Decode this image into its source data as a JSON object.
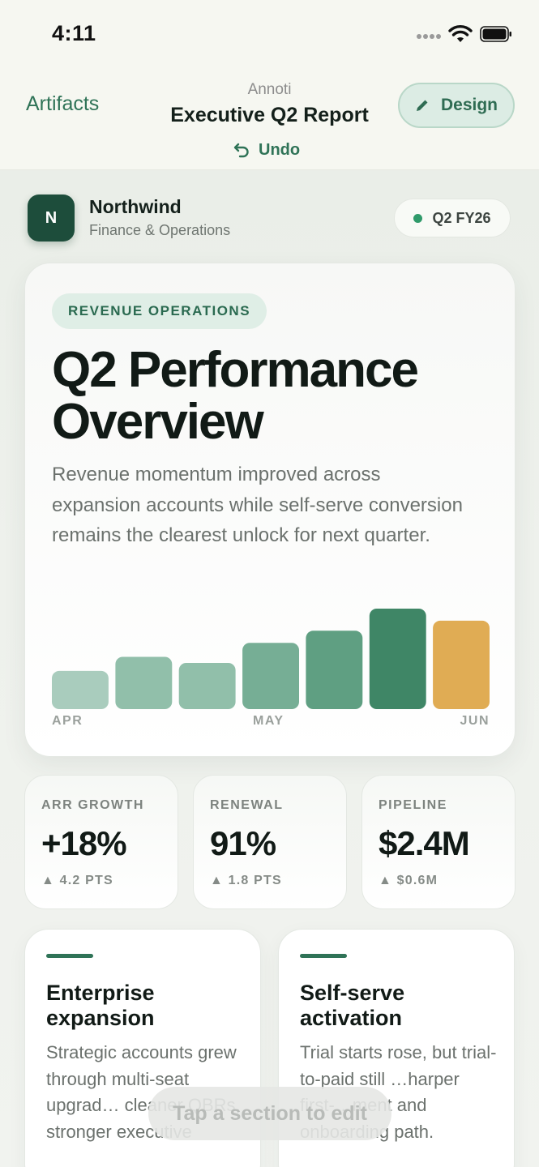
{
  "status_bar": {
    "time": "4:11"
  },
  "nav": {
    "back_label": "Artifacts",
    "app_name": "Annoti",
    "title": "Executive Q2 Report",
    "undo_label": "Undo",
    "design_label": "Design"
  },
  "brand": {
    "avatar_initial": "N",
    "name": "Northwind",
    "subtitle": "Finance & Operations",
    "period": "Q2 FY26",
    "period_dot_color": "#2f9a6a"
  },
  "hero": {
    "eyebrow": "REVENUE OPERATIONS",
    "title": "Q2 Performance Overview",
    "description": "Revenue momentum improved across expansion accounts while self-serve conversion remains the clearest unlock for next quarter."
  },
  "chart_data": {
    "type": "bar",
    "x_labels": [
      "APR",
      "MAY",
      "JUN"
    ],
    "values": [
      0.38,
      0.52,
      0.46,
      0.66,
      0.78,
      1.0,
      0.88
    ],
    "colors": [
      "#a9ccbd",
      "#91bfaa",
      "#91bfaa",
      "#76ae95",
      "#5f9f82",
      "#3f8666",
      "#e0ac54"
    ]
  },
  "kpis": [
    {
      "label": "ARR GROWTH",
      "value": "+18%",
      "delta": "▲ 4.2 PTS"
    },
    {
      "label": "RENEWAL",
      "value": "91%",
      "delta": "▲ 1.8 PTS"
    },
    {
      "label": "PIPELINE",
      "value": "$2.4M",
      "delta": "▲ $0.6M"
    }
  ],
  "topics": [
    {
      "title": "Enterprise expansion",
      "body": "Strategic accounts grew through multi-seat upgrad… cleaner QBRs, stronger executive"
    },
    {
      "title": "Self-serve activation",
      "body": "Trial starts rose, but trial-to-paid still …harper first-…ment and onboarding path."
    }
  ],
  "toast": "Tap a section to edit",
  "colors": {
    "accent": "#2f7357",
    "highlight_bar": "#e0ac54"
  }
}
